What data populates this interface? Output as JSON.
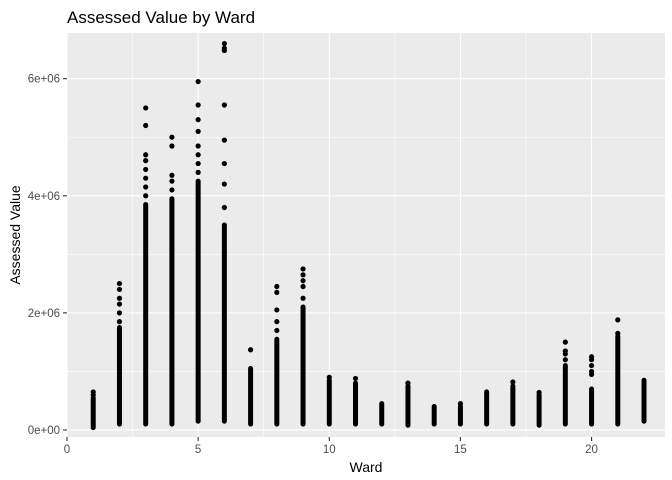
{
  "chart_data": {
    "type": "scatter",
    "title": "Assessed Value by Ward",
    "xlabel": "Ward",
    "ylabel": "Assessed Value",
    "xlim": [
      0,
      22.8
    ],
    "ylim": [
      -120000,
      6780000
    ],
    "x_ticks": [
      0,
      5,
      10,
      15,
      20
    ],
    "x_tick_labels": [
      "0",
      "5",
      "10",
      "15",
      "20"
    ],
    "y_ticks": [
      0,
      2000000,
      4000000,
      6000000
    ],
    "y_tick_labels": [
      "0e+00",
      "2e+06",
      "4e+06",
      "6e+06"
    ],
    "grid": true,
    "panel_background": "#ebebeb",
    "grid_color": "#ffffff",
    "point_color": "#000000",
    "wards": [
      {
        "ward": 1,
        "min": 40000,
        "max_dense": 550000,
        "outliers": [
          600000,
          650000
        ]
      },
      {
        "ward": 2,
        "min": 100000,
        "max_dense": 1750000,
        "outliers": [
          1850000,
          2000000,
          2150000,
          2250000,
          2400000,
          2500000
        ]
      },
      {
        "ward": 3,
        "min": 100000,
        "max_dense": 3850000,
        "outliers": [
          4000000,
          4150000,
          4300000,
          4450000,
          4600000,
          4700000,
          5200000,
          5500000
        ]
      },
      {
        "ward": 4,
        "min": 100000,
        "max_dense": 3950000,
        "outliers": [
          4100000,
          4250000,
          4350000,
          4850000,
          5000000
        ]
      },
      {
        "ward": 5,
        "min": 150000,
        "max_dense": 4250000,
        "outliers": [
          4400000,
          4550000,
          4700000,
          4850000,
          5100000,
          5300000,
          5550000,
          5950000
        ]
      },
      {
        "ward": 6,
        "min": 150000,
        "max_dense": 3500000,
        "outliers": [
          3800000,
          4200000,
          4550000,
          4950000,
          5550000,
          6480000,
          6520000,
          6600000
        ]
      },
      {
        "ward": 7,
        "min": 100000,
        "max_dense": 1050000,
        "outliers": [
          1370000
        ]
      },
      {
        "ward": 8,
        "min": 100000,
        "max_dense": 1550000,
        "outliers": [
          1700000,
          1850000,
          2050000,
          2350000,
          2450000
        ]
      },
      {
        "ward": 9,
        "min": 100000,
        "max_dense": 2100000,
        "outliers": [
          2250000,
          2450000,
          2550000,
          2650000,
          2750000
        ]
      },
      {
        "ward": 10,
        "min": 100000,
        "max_dense": 850000,
        "outliers": [
          900000
        ]
      },
      {
        "ward": 11,
        "min": 100000,
        "max_dense": 800000,
        "outliers": [
          880000
        ]
      },
      {
        "ward": 12,
        "min": 100000,
        "max_dense": 450000,
        "outliers": []
      },
      {
        "ward": 13,
        "min": 80000,
        "max_dense": 750000,
        "outliers": [
          800000
        ]
      },
      {
        "ward": 14,
        "min": 100000,
        "max_dense": 400000,
        "outliers": []
      },
      {
        "ward": 15,
        "min": 100000,
        "max_dense": 400000,
        "outliers": [
          450000
        ]
      },
      {
        "ward": 16,
        "min": 100000,
        "max_dense": 650000,
        "outliers": []
      },
      {
        "ward": 17,
        "min": 100000,
        "max_dense": 750000,
        "outliers": [
          820000
        ]
      },
      {
        "ward": 18,
        "min": 80000,
        "max_dense": 600000,
        "outliers": [
          640000
        ]
      },
      {
        "ward": 19,
        "min": 100000,
        "max_dense": 1100000,
        "outliers": [
          1200000,
          1300000,
          1350000,
          1500000
        ]
      },
      {
        "ward": 20,
        "min": 100000,
        "max_dense": 700000,
        "outliers": [
          950000,
          1000000,
          1100000,
          1200000,
          1250000
        ]
      },
      {
        "ward": 21,
        "min": 100000,
        "max_dense": 1600000,
        "outliers": [
          1650000,
          1880000
        ]
      },
      {
        "ward": 22,
        "min": 150000,
        "max_dense": 850000,
        "outliers": []
      }
    ]
  }
}
